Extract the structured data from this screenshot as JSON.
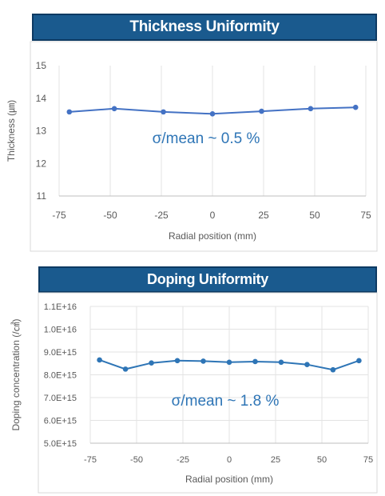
{
  "chart_data": [
    {
      "type": "line",
      "title": "Thickness Uniformity",
      "xlabel": "Radial position (mm)",
      "ylabel": "Thickness (㎛)",
      "xlim": [
        -75,
        75
      ],
      "ylim": [
        11,
        15
      ],
      "x_ticks": [
        "-75",
        "-50",
        "-25",
        "0",
        "25",
        "50",
        "75"
      ],
      "y_ticks": [
        "11",
        "12",
        "13",
        "14",
        "15"
      ],
      "annotation": "σ/mean ~ 0.5 %",
      "grid": "vertical",
      "series": [
        {
          "color": "#4472c4",
          "points": [
            [
              -70,
              13.58
            ],
            [
              -48,
              13.68
            ],
            [
              -24,
              13.58
            ],
            [
              0,
              13.52
            ],
            [
              24,
              13.6
            ],
            [
              48,
              13.68
            ],
            [
              70,
              13.72
            ]
          ]
        }
      ]
    },
    {
      "type": "line",
      "title": "Doping Uniformity",
      "xlabel": "Radial position (mm)",
      "ylabel": "Doping concentration (/㎤)",
      "xlim": [
        -75,
        75
      ],
      "ylim": [
        5000000000000000.0,
        1.1e+16
      ],
      "x_ticks": [
        "-75",
        "-50",
        "-25",
        "0",
        "25",
        "50",
        "75"
      ],
      "y_ticks": [
        "5.0E+15",
        "6.0E+15",
        "7.0E+15",
        "8.0E+15",
        "9.0E+15",
        "1.0E+16",
        "1.1E+16"
      ],
      "annotation": "σ/mean ~ 1.8 %",
      "grid": "both",
      "series": [
        {
          "color": "#2e75b6",
          "points": [
            [
              -70,
              8650000000000000.0
            ],
            [
              -56,
              8250000000000000.0
            ],
            [
              -42,
              8520000000000000.0
            ],
            [
              -28,
              8620000000000000.0
            ],
            [
              -14,
              8600000000000000.0
            ],
            [
              0,
              8550000000000000.0
            ],
            [
              14,
              8580000000000000.0
            ],
            [
              28,
              8550000000000000.0
            ],
            [
              42,
              8450000000000000.0
            ],
            [
              56,
              8220000000000000.0
            ],
            [
              70,
              8620000000000000.0
            ]
          ]
        }
      ]
    }
  ]
}
